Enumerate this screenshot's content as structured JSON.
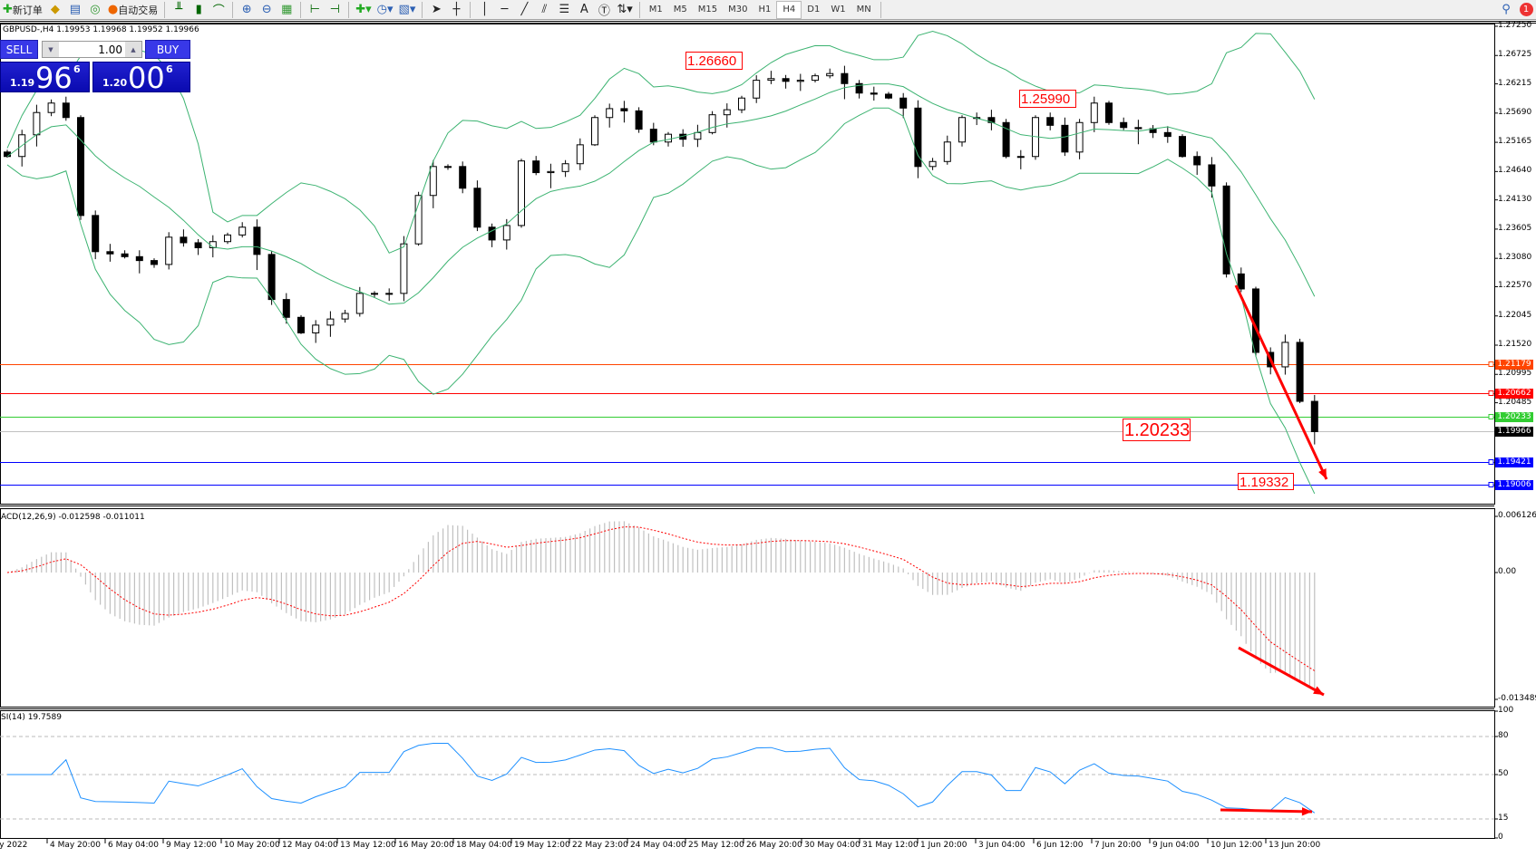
{
  "toolbar": {
    "new_order": "新订单",
    "auto_trading": "自动交易",
    "icons": [
      "new-order-icon",
      "market-watch-icon",
      "navigator-icon",
      "signals-icon",
      "auto-trading-icon",
      "bar-chart-icon",
      "candlestick-icon",
      "line-chart-icon",
      "zoom-in-icon",
      "zoom-out-icon",
      "tile-windows-icon",
      "chart-shift-icon",
      "autoscroll-icon",
      "indicators-icon",
      "periods-icon",
      "templates-icon",
      "cursor-icon",
      "crosshair-icon",
      "vertical-line-icon",
      "horizontal-line-icon",
      "trendline-icon",
      "equidistant-channel-icon",
      "fibonacci-icon",
      "text-icon",
      "text-label-icon",
      "arrows-icon"
    ],
    "timeframes": [
      "M1",
      "M5",
      "M15",
      "M30",
      "H1",
      "H4",
      "D1",
      "W1",
      "MN"
    ],
    "active_timeframe": "H4",
    "notification_count": "1"
  },
  "chart": {
    "title": "GBPUSD-,H4  1.19953 1.19968 1.19952 1.19966",
    "trade_panel": {
      "sell": "SELL",
      "buy": "BUY",
      "lot": "1.00",
      "sell_small": "1.19",
      "sell_big": "96",
      "sell_pip": "6",
      "buy_small": "1.20",
      "buy_big": "00",
      "buy_pip": "6"
    },
    "price_ticks": [
      "1.27250",
      "1.26725",
      "1.26215",
      "1.25690",
      "1.25165",
      "1.24640",
      "1.24130",
      "1.23605",
      "1.23080",
      "1.22570",
      "1.22045",
      "1.21520",
      "1.20995",
      "1.20485"
    ],
    "hlines": [
      {
        "price": 1.21179,
        "label": "1.21179",
        "color": "#ff4500"
      },
      {
        "price": 1.20662,
        "label": "1.20662",
        "color": "#ff0000"
      },
      {
        "price": 1.20233,
        "label": "1.20233",
        "color": "#32cd32"
      },
      {
        "price": 1.19966,
        "label": "1.19966",
        "color": "#000000",
        "line": "#c0c0c0"
      },
      {
        "price": 1.19421,
        "label": "1.19421",
        "color": "#0000ff"
      },
      {
        "price": 1.19006,
        "label": "1.19006",
        "color": "#0000ff"
      }
    ],
    "price_labels": [
      "1.26660",
      "1.25990",
      "1.20233",
      "1.19332"
    ],
    "band_color": "#3cb371"
  },
  "macd": {
    "header": "ACD(12,26,9) -0.012598 -0.011011",
    "ticks": [
      "0.006126",
      "0.00",
      "-0.013489"
    ],
    "hist_color": "#c0c0c0",
    "signal_color": "#ff0000"
  },
  "rsi": {
    "header": "SI(14) 19.7589",
    "ticks": [
      "100",
      "80",
      "50",
      "15",
      "0"
    ],
    "levels": [
      80,
      50,
      15
    ],
    "color": "#1e90ff"
  },
  "time_labels": [
    "May 2022",
    "4 May 20:00",
    "6 May 04:00",
    "9 May 12:00",
    "10 May 20:00",
    "12 May 04:00",
    "13 May 12:00",
    "16 May 20:00",
    "18 May 04:00",
    "19 May 12:00",
    "22 May 23:00",
    "24 May 04:00",
    "25 May 12:00",
    "26 May 20:00",
    "30 May 04:00",
    "31 May 12:00",
    "1 Jun 20:00",
    "3 Jun 04:00",
    "6 Jun 12:00",
    "7 Jun 20:00",
    "9 Jun 04:00",
    "10 Jun 12:00",
    "13 Jun 20:00"
  ],
  "chart_data": {
    "type": "candlestick",
    "symbol": "GBPUSD-",
    "timeframe": "H4",
    "ylim": [
      1.18925,
      1.2725
    ],
    "close": [
      1.2491,
      1.253,
      1.257,
      1.2587,
      1.2561,
      1.2385,
      1.232,
      1.2316,
      1.2311,
      1.2304,
      1.2297,
      1.2346,
      1.2336,
      1.2327,
      1.2338,
      1.235,
      1.2364,
      1.2315,
      1.2234,
      1.2202,
      1.2174,
      1.2188,
      1.2199,
      1.2209,
      1.2245,
      1.2245,
      1.2245,
      1.2334,
      1.2421,
      1.2473,
      1.2473,
      1.2434,
      1.2364,
      1.2341,
      1.2367,
      1.2483,
      1.2462,
      1.2464,
      1.2478,
      1.2512,
      1.2561,
      1.2577,
      1.2573,
      1.254,
      1.2517,
      1.2531,
      1.2522,
      1.2534,
      1.2566,
      1.2575,
      1.2596,
      1.2628,
      1.2631,
      1.2626,
      1.2628,
      1.2636,
      1.264,
      1.2622,
      1.2605,
      1.2603,
      1.2596,
      1.2578,
      1.2473,
      1.2482,
      1.2517,
      1.2561,
      1.2561,
      1.2552,
      1.2491,
      1.2491,
      1.2561,
      1.2547,
      1.2499,
      1.2552,
      1.2587,
      1.2552,
      1.2543,
      1.2541,
      1.2534,
      1.2527,
      1.2491,
      1.2476,
      1.2438,
      1.228,
      1.2253,
      1.2139,
      1.2113,
      1.2157,
      1.2051,
      1.19966
    ],
    "indicators": [
      "Bollinger Bands",
      "MACD",
      "RSI"
    ],
    "macd_ylim": [
      -0.013489,
      0.006126
    ],
    "rsi_ylim": [
      0,
      100
    ]
  }
}
